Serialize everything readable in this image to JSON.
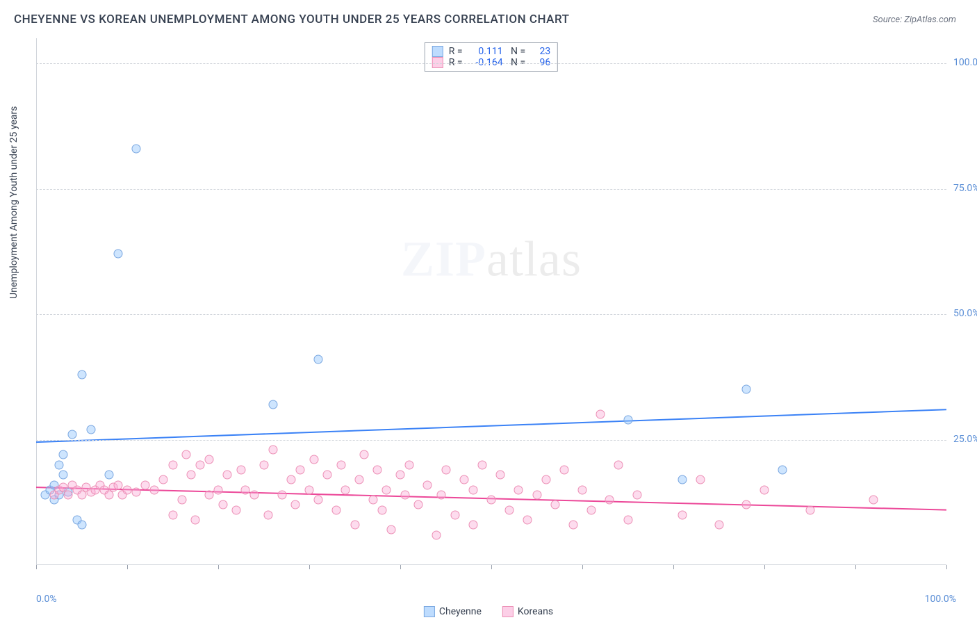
{
  "title": "CHEYENNE VS KOREAN UNEMPLOYMENT AMONG YOUTH UNDER 25 YEARS CORRELATION CHART",
  "source": "Source: ZipAtlas.com",
  "y_axis_label": "Unemployment Among Youth under 25 years",
  "watermark_bold": "ZIP",
  "watermark_light": "atlas",
  "chart": {
    "type": "scatter",
    "xlim": [
      0,
      100
    ],
    "ylim": [
      0,
      105
    ],
    "x_ticks": [
      0,
      10,
      20,
      30,
      40,
      50,
      60,
      70,
      80,
      90,
      100
    ],
    "y_ticks": [
      25,
      50,
      75,
      100
    ],
    "y_tick_labels": [
      "25.0%",
      "50.0%",
      "75.0%",
      "100.0%"
    ],
    "x_min_label": "0.0%",
    "x_max_label": "100.0%",
    "background_color": "#ffffff",
    "grid_color": "#d1d5db",
    "axis_label_color": "#5a8ed6",
    "series": [
      {
        "name": "Cheyenne",
        "color_fill": "rgba(147,197,253,0.45)",
        "color_stroke": "#7aa7e0",
        "r_value": "0.111",
        "n_value": "23",
        "trend": {
          "y_at_x0": 24.5,
          "y_at_x100": 31.0,
          "stroke": "#3b82f6",
          "width": 2
        },
        "points": [
          [
            1,
            14
          ],
          [
            1.5,
            15
          ],
          [
            2,
            13
          ],
          [
            2,
            16
          ],
          [
            2.5,
            20
          ],
          [
            3,
            22
          ],
          [
            3,
            18
          ],
          [
            3.5,
            14.5
          ],
          [
            4,
            26
          ],
          [
            4.5,
            9
          ],
          [
            5,
            8
          ],
          [
            5,
            38
          ],
          [
            6,
            27
          ],
          [
            8,
            18
          ],
          [
            9,
            62
          ],
          [
            11,
            83
          ],
          [
            26,
            32
          ],
          [
            31,
            41
          ],
          [
            65,
            29
          ],
          [
            71,
            17
          ],
          [
            78,
            35
          ],
          [
            82,
            19
          ],
          [
            2.5,
            14
          ]
        ]
      },
      {
        "name": "Koreans",
        "color_fill": "rgba(249,168,212,0.40)",
        "color_stroke": "#ec8fb5",
        "r_value": "-0.164",
        "n_value": "96",
        "trend": {
          "y_at_x0": 15.5,
          "y_at_x100": 11.0,
          "stroke": "#ec4899",
          "width": 2
        },
        "points": [
          [
            2,
            14
          ],
          [
            2.5,
            15
          ],
          [
            3,
            15.5
          ],
          [
            3.5,
            14
          ],
          [
            4,
            16
          ],
          [
            4.5,
            15
          ],
          [
            5,
            14
          ],
          [
            5.5,
            15.5
          ],
          [
            6,
            14.5
          ],
          [
            6.5,
            15
          ],
          [
            7,
            16
          ],
          [
            7.5,
            15
          ],
          [
            8,
            14
          ],
          [
            8.5,
            15.5
          ],
          [
            9,
            16
          ],
          [
            9.5,
            14
          ],
          [
            10,
            15
          ],
          [
            11,
            14.5
          ],
          [
            12,
            16
          ],
          [
            13,
            15
          ],
          [
            14,
            17
          ],
          [
            15,
            20
          ],
          [
            15,
            10
          ],
          [
            16,
            13
          ],
          [
            16.5,
            22
          ],
          [
            17,
            18
          ],
          [
            17.5,
            9
          ],
          [
            18,
            20
          ],
          [
            19,
            14
          ],
          [
            19,
            21
          ],
          [
            20,
            15
          ],
          [
            20.5,
            12
          ],
          [
            21,
            18
          ],
          [
            22,
            11
          ],
          [
            22.5,
            19
          ],
          [
            23,
            15
          ],
          [
            24,
            14
          ],
          [
            25,
            20
          ],
          [
            25.5,
            10
          ],
          [
            26,
            23
          ],
          [
            27,
            14
          ],
          [
            28,
            17
          ],
          [
            28.5,
            12
          ],
          [
            29,
            19
          ],
          [
            30,
            15
          ],
          [
            30.5,
            21
          ],
          [
            31,
            13
          ],
          [
            32,
            18
          ],
          [
            33,
            11
          ],
          [
            33.5,
            20
          ],
          [
            34,
            15
          ],
          [
            35,
            8
          ],
          [
            35.5,
            17
          ],
          [
            36,
            22
          ],
          [
            37,
            13
          ],
          [
            37.5,
            19
          ],
          [
            38,
            11
          ],
          [
            38.5,
            15
          ],
          [
            39,
            7
          ],
          [
            40,
            18
          ],
          [
            40.5,
            14
          ],
          [
            41,
            20
          ],
          [
            42,
            12
          ],
          [
            43,
            16
          ],
          [
            44,
            6
          ],
          [
            44.5,
            14
          ],
          [
            45,
            19
          ],
          [
            46,
            10
          ],
          [
            47,
            17
          ],
          [
            48,
            15
          ],
          [
            48,
            8
          ],
          [
            49,
            20
          ],
          [
            50,
            13
          ],
          [
            51,
            18
          ],
          [
            52,
            11
          ],
          [
            53,
            15
          ],
          [
            54,
            9
          ],
          [
            55,
            14
          ],
          [
            56,
            17
          ],
          [
            57,
            12
          ],
          [
            58,
            19
          ],
          [
            59,
            8
          ],
          [
            60,
            15
          ],
          [
            61,
            11
          ],
          [
            62,
            30
          ],
          [
            63,
            13
          ],
          [
            64,
            20
          ],
          [
            65,
            9
          ],
          [
            66,
            14
          ],
          [
            71,
            10
          ],
          [
            73,
            17
          ],
          [
            75,
            8
          ],
          [
            78,
            12
          ],
          [
            80,
            15
          ],
          [
            85,
            11
          ],
          [
            92,
            13
          ]
        ]
      }
    ]
  },
  "legend": [
    {
      "label": "Cheyenne",
      "swatch": "blue"
    },
    {
      "label": "Koreans",
      "swatch": "pink"
    }
  ]
}
